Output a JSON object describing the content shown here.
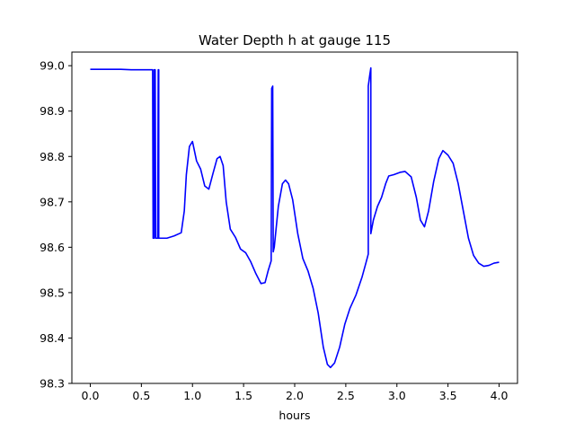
{
  "chart_data": {
    "type": "line",
    "title": "Water Depth h at gauge 115",
    "xlabel": "hours",
    "ylabel": "",
    "xlim": [
      -0.18,
      4.18
    ],
    "ylim": [
      98.3,
      99.03
    ],
    "grid": false,
    "color": "#0000ff",
    "xticks": [
      {
        "value": 0.0,
        "label": "0.0"
      },
      {
        "value": 0.5,
        "label": "0.5"
      },
      {
        "value": 1.0,
        "label": "1.0"
      },
      {
        "value": 1.5,
        "label": "1.5"
      },
      {
        "value": 2.0,
        "label": "2.0"
      },
      {
        "value": 2.5,
        "label": "2.5"
      },
      {
        "value": 3.0,
        "label": "3.0"
      },
      {
        "value": 3.5,
        "label": "3.5"
      },
      {
        "value": 4.0,
        "label": "4.0"
      }
    ],
    "yticks": [
      {
        "value": 98.3,
        "label": "98.3"
      },
      {
        "value": 98.4,
        "label": "98.4"
      },
      {
        "value": 98.5,
        "label": "98.5"
      },
      {
        "value": 98.6,
        "label": "98.6"
      },
      {
        "value": 98.7,
        "label": "98.7"
      },
      {
        "value": 98.8,
        "label": "98.8"
      },
      {
        "value": 98.9,
        "label": "98.9"
      },
      {
        "value": 99.0,
        "label": "99.0"
      }
    ],
    "series": [
      {
        "points": [
          [
            0.0,
            98.992
          ],
          [
            0.3,
            98.992
          ],
          [
            0.4,
            98.991
          ],
          [
            0.61,
            98.991
          ],
          [
            0.615,
            98.62
          ],
          [
            0.625,
            98.62
          ],
          [
            0.625,
            98.991
          ],
          [
            0.635,
            98.991
          ],
          [
            0.64,
            98.62
          ],
          [
            0.66,
            98.62
          ],
          [
            0.665,
            98.991
          ],
          [
            0.67,
            98.991
          ],
          [
            0.67,
            98.62
          ],
          [
            0.75,
            98.62
          ],
          [
            0.82,
            98.625
          ],
          [
            0.89,
            98.632
          ],
          [
            0.92,
            98.68
          ],
          [
            0.94,
            98.76
          ],
          [
            0.97,
            98.822
          ],
          [
            1.0,
            98.833
          ],
          [
            1.04,
            98.79
          ],
          [
            1.08,
            98.772
          ],
          [
            1.12,
            98.735
          ],
          [
            1.16,
            98.728
          ],
          [
            1.2,
            98.762
          ],
          [
            1.24,
            98.795
          ],
          [
            1.27,
            98.8
          ],
          [
            1.3,
            98.78
          ],
          [
            1.33,
            98.7
          ],
          [
            1.37,
            98.64
          ],
          [
            1.42,
            98.622
          ],
          [
            1.47,
            98.596
          ],
          [
            1.52,
            98.588
          ],
          [
            1.57,
            98.568
          ],
          [
            1.62,
            98.542
          ],
          [
            1.67,
            98.52
          ],
          [
            1.71,
            98.522
          ],
          [
            1.74,
            98.548
          ],
          [
            1.77,
            98.57
          ],
          [
            1.775,
            98.95
          ],
          [
            1.785,
            98.955
          ],
          [
            1.79,
            98.59
          ],
          [
            1.8,
            98.6
          ],
          [
            1.84,
            98.69
          ],
          [
            1.88,
            98.74
          ],
          [
            1.91,
            98.748
          ],
          [
            1.94,
            98.74
          ],
          [
            1.98,
            98.705
          ],
          [
            2.03,
            98.63
          ],
          [
            2.08,
            98.575
          ],
          [
            2.13,
            98.548
          ],
          [
            2.18,
            98.51
          ],
          [
            2.23,
            98.455
          ],
          [
            2.28,
            98.38
          ],
          [
            2.32,
            98.342
          ],
          [
            2.35,
            98.335
          ],
          [
            2.39,
            98.345
          ],
          [
            2.44,
            98.38
          ],
          [
            2.49,
            98.43
          ],
          [
            2.54,
            98.465
          ],
          [
            2.6,
            98.495
          ],
          [
            2.66,
            98.535
          ],
          [
            2.7,
            98.568
          ],
          [
            2.72,
            98.585
          ],
          [
            2.72,
            98.955
          ],
          [
            2.735,
            98.98
          ],
          [
            2.745,
            98.995
          ],
          [
            2.745,
            98.63
          ],
          [
            2.77,
            98.66
          ],
          [
            2.81,
            98.69
          ],
          [
            2.85,
            98.71
          ],
          [
            2.89,
            98.74
          ],
          [
            2.92,
            98.757
          ],
          [
            2.97,
            98.76
          ],
          [
            3.03,
            98.765
          ],
          [
            3.08,
            98.767
          ],
          [
            3.14,
            98.755
          ],
          [
            3.19,
            98.71
          ],
          [
            3.23,
            98.66
          ],
          [
            3.27,
            98.645
          ],
          [
            3.31,
            98.68
          ],
          [
            3.36,
            98.745
          ],
          [
            3.41,
            98.795
          ],
          [
            3.45,
            98.813
          ],
          [
            3.5,
            98.803
          ],
          [
            3.55,
            98.785
          ],
          [
            3.6,
            98.74
          ],
          [
            3.65,
            98.68
          ],
          [
            3.7,
            98.62
          ],
          [
            3.75,
            98.582
          ],
          [
            3.8,
            98.565
          ],
          [
            3.85,
            98.558
          ],
          [
            3.9,
            98.56
          ],
          [
            3.95,
            98.565
          ],
          [
            4.0,
            98.567
          ]
        ]
      }
    ]
  }
}
